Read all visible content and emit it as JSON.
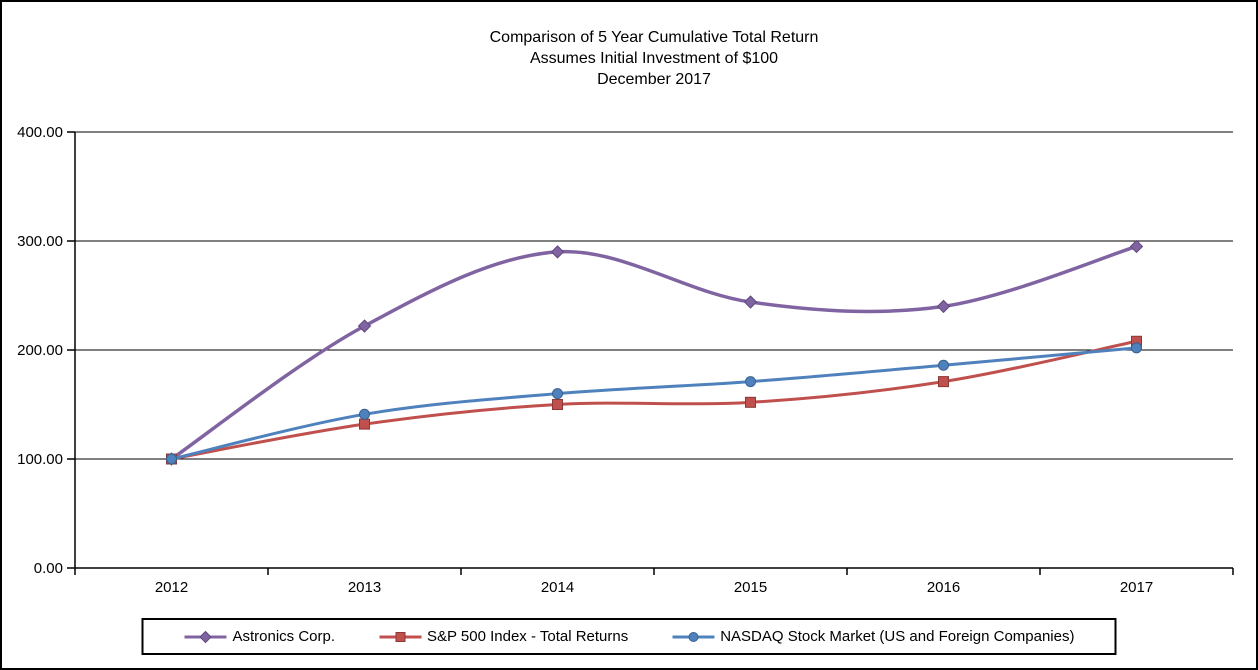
{
  "chart_data": {
    "type": "line",
    "title": "Comparison of 5 Year Cumulative Total Return",
    "title_lines": [
      "Comparison of 5 Year Cumulative Total Return",
      "Assumes Initial Investment of $100",
      "December 2017"
    ],
    "categories": [
      "2012",
      "2013",
      "2014",
      "2015",
      "2016",
      "2017"
    ],
    "series": [
      {
        "id": "astronics",
        "name": "Astronics Corp.",
        "values": [
          100,
          222,
          290,
          244,
          240,
          295
        ],
        "color": "#8064A2",
        "marker": "diamond",
        "marker_border": "#60497B"
      },
      {
        "id": "sp500-index",
        "name": "S&P 500 Index - Total Returns",
        "values": [
          100,
          132,
          150,
          152,
          171,
          208
        ],
        "color": "#C0504D",
        "marker": "square",
        "marker_border": "#8C3836"
      },
      {
        "id": "nasdaq",
        "name": "NASDAQ Stock Market (US and Foreign Companies)",
        "values": [
          100,
          141,
          160,
          171,
          186,
          202
        ],
        "color": "#4F81BD",
        "marker": "circle",
        "marker_border": "#38608D"
      }
    ],
    "y_axis": {
      "min": 0,
      "max": 400,
      "step": 100,
      "tick_labels": [
        "0.00",
        "100.00",
        "200.00",
        "300.00",
        "400.00"
      ]
    },
    "x_axis": {
      "tick_labels": [
        "2012",
        "2013",
        "2014",
        "2015",
        "2016",
        "2017"
      ]
    },
    "grid": true,
    "legend_position": "bottom",
    "smoothed": true,
    "axis_color": "#000000",
    "grid_color": "#000000"
  }
}
